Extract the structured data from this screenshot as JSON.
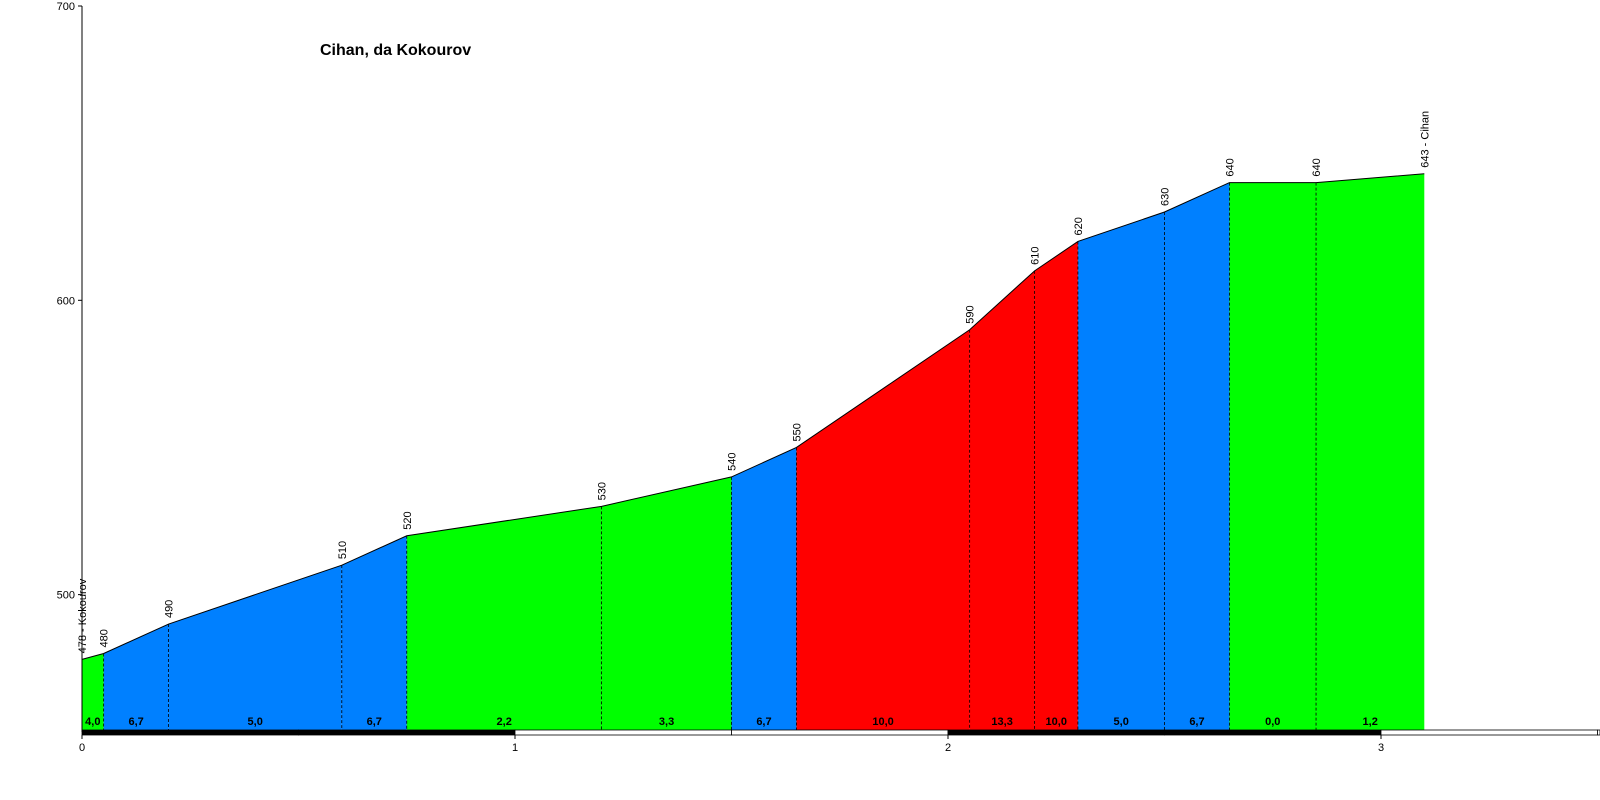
{
  "chart_data": {
    "type": "area",
    "title": "Cihan, da Kokourov",
    "xlabel": "",
    "ylabel": "",
    "xlim": [
      0,
      3.6
    ],
    "ylim": [
      454,
      700
    ],
    "x_ticks": [
      0,
      1,
      2,
      3
    ],
    "y_ticks": [
      500,
      600,
      700
    ],
    "grid": false,
    "legend": "none",
    "colors": {
      "green": "#00ff00",
      "blue": "#0080ff",
      "red": "#ff0000",
      "outline": "#000000"
    },
    "points": [
      {
        "x": 0.0,
        "elev": 478,
        "label": "478 - Kokourov"
      },
      {
        "x": 0.05,
        "elev": 480,
        "label": "480"
      },
      {
        "x": 0.2,
        "elev": 490,
        "label": "490"
      },
      {
        "x": 0.6,
        "elev": 510,
        "label": "510"
      },
      {
        "x": 0.75,
        "elev": 520,
        "label": "520"
      },
      {
        "x": 1.2,
        "elev": 530,
        "label": "530"
      },
      {
        "x": 1.5,
        "elev": 540,
        "label": "540"
      },
      {
        "x": 1.65,
        "elev": 550,
        "label": "550"
      },
      {
        "x": 2.05,
        "elev": 590,
        "label": "590"
      },
      {
        "x": 2.2,
        "elev": 610,
        "label": "610"
      },
      {
        "x": 2.3,
        "elev": 620,
        "label": "620"
      },
      {
        "x": 2.5,
        "elev": 630,
        "label": "630"
      },
      {
        "x": 2.65,
        "elev": 640,
        "label": "640"
      },
      {
        "x": 2.85,
        "elev": 640,
        "label": "640"
      },
      {
        "x": 3.1,
        "elev": 643,
        "label": "643 - Cihan"
      }
    ],
    "segments": [
      {
        "grade": "4,0",
        "color": "green"
      },
      {
        "grade": "6,7",
        "color": "blue"
      },
      {
        "grade": "5,0",
        "color": "blue"
      },
      {
        "grade": "6,7",
        "color": "blue"
      },
      {
        "grade": "2,2",
        "color": "green"
      },
      {
        "grade": "3,3",
        "color": "green"
      },
      {
        "grade": "6,7",
        "color": "blue"
      },
      {
        "grade": "10,0",
        "color": "red"
      },
      {
        "grade": "13,3",
        "color": "red"
      },
      {
        "grade": "10,0",
        "color": "red"
      },
      {
        "grade": "5,0",
        "color": "blue"
      },
      {
        "grade": "6,7",
        "color": "blue"
      },
      {
        "grade": "0,0",
        "color": "green"
      },
      {
        "grade": "1,2",
        "color": "green"
      }
    ]
  }
}
